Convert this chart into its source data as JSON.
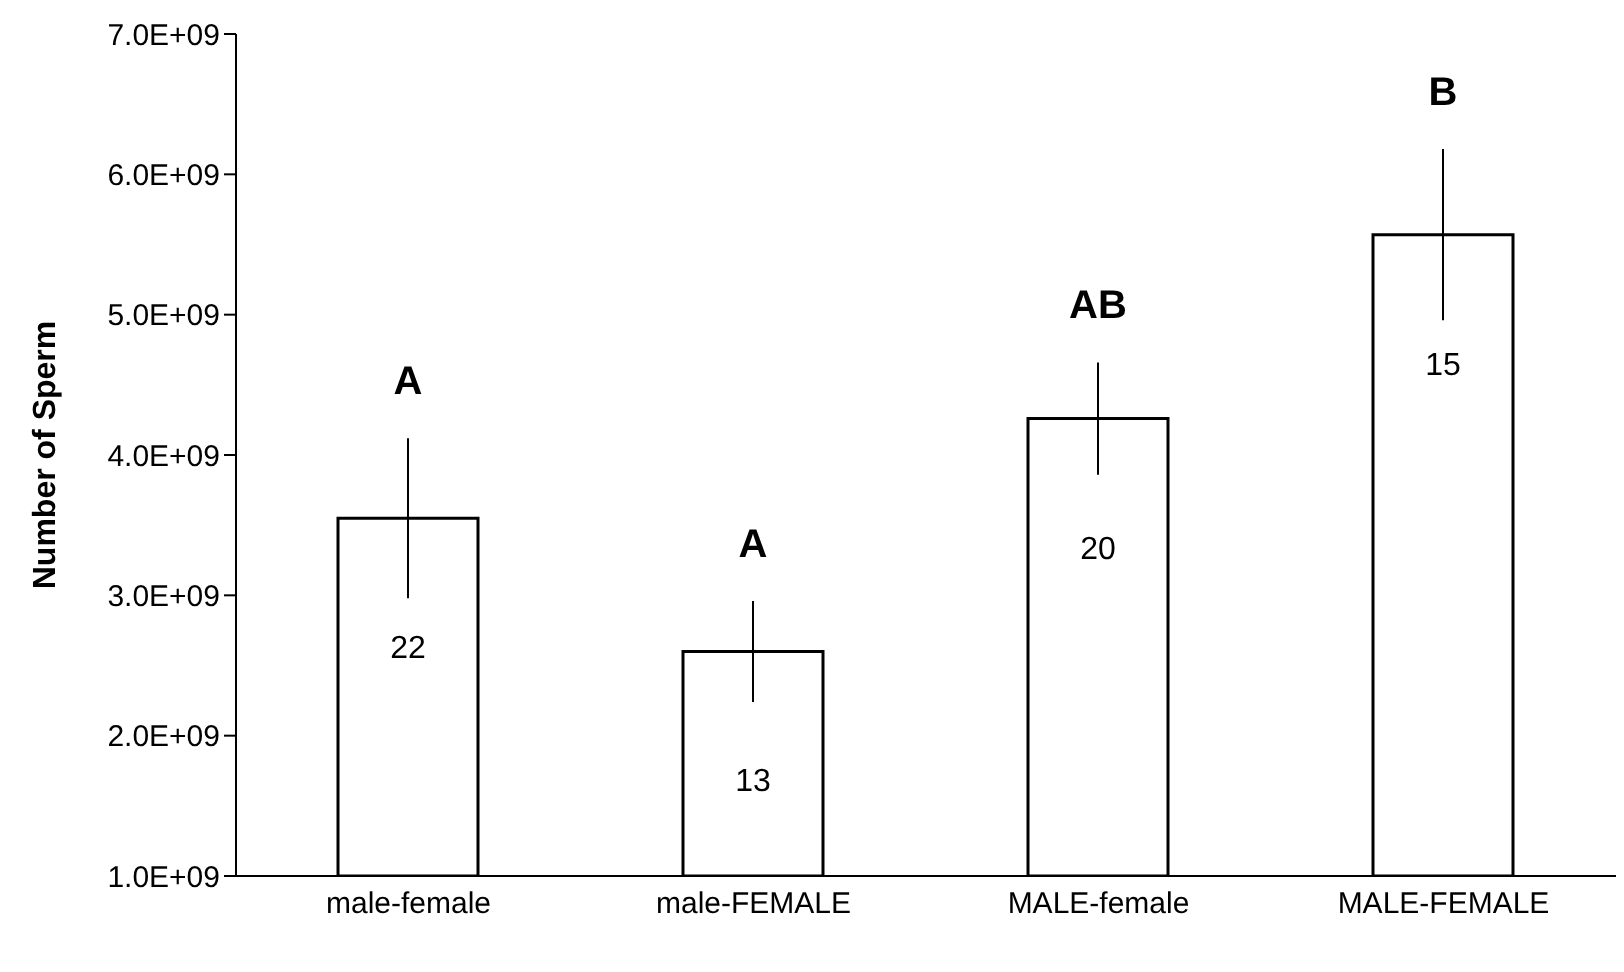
{
  "chart_data": {
    "type": "bar",
    "ylabel": "Number of Sperm",
    "categories": [
      "male-female",
      "male-FEMALE",
      "MALE-female",
      "MALE-FEMALE"
    ],
    "values": [
      3550000000.0,
      2600000000.0,
      4260000000.0,
      5570000000.0
    ],
    "errors": [
      570000000.0,
      360000000.0,
      400000000.0,
      610000000.0
    ],
    "color": "#ffffff",
    "ylim": [
      1000000000.0,
      7000000000.0
    ],
    "yticks": [
      {
        "value": 1000000000.0,
        "label": "1.0E+09"
      },
      {
        "value": 2000000000.0,
        "label": "2.0E+09"
      },
      {
        "value": 3000000000.0,
        "label": "3.0E+09"
      },
      {
        "value": 4000000000.0,
        "label": "4.0E+09"
      },
      {
        "value": 5000000000.0,
        "label": "5.0E+09"
      },
      {
        "value": 6000000000.0,
        "label": "6.0E+09"
      },
      {
        "value": 7000000000.0,
        "label": "7.0E+09"
      }
    ],
    "annotations": [
      "A",
      "A",
      "AB",
      "B",
      "22",
      "13",
      "20",
      "15"
    ],
    "grid": false,
    "legend": false
  }
}
